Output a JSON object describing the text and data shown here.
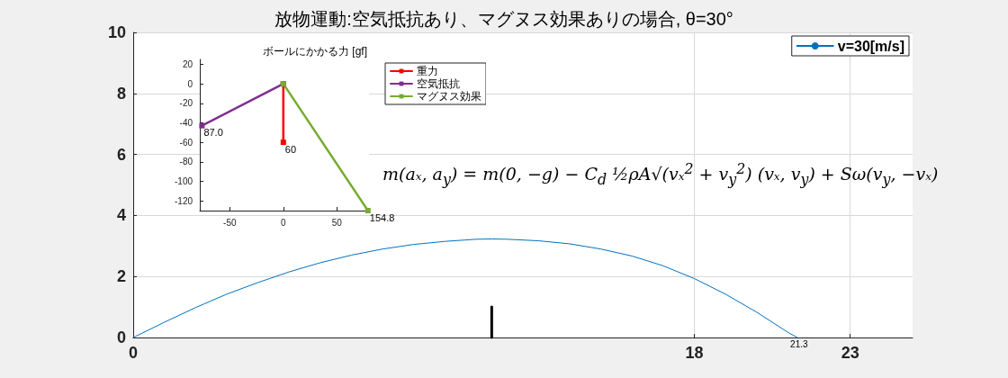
{
  "chart_data": [
    {
      "type": "line",
      "title": "放物運動:空気抵抗あり、マグヌス効果ありの場合, θ=30°",
      "xlim": [
        0,
        25
      ],
      "ylim": [
        0,
        10
      ],
      "xticks": [
        0,
        18,
        23
      ],
      "yticks": [
        0,
        2,
        4,
        6,
        8,
        10
      ],
      "grid": true,
      "legend": "top right",
      "marker": "none",
      "series": [
        {
          "name": "v=30[m/s]",
          "color": "#0072bd",
          "x": [
            0,
            1,
            2,
            3,
            4,
            5,
            6,
            7,
            8,
            9,
            10,
            11,
            11.5,
            12,
            13,
            14,
            15,
            16,
            17,
            18,
            19,
            20,
            21,
            21.3
          ],
          "values": [
            0,
            0.5,
            0.98,
            1.42,
            1.8,
            2.15,
            2.45,
            2.7,
            2.9,
            3.05,
            3.15,
            3.22,
            3.23,
            3.22,
            3.17,
            3.07,
            2.9,
            2.67,
            2.35,
            1.93,
            1.42,
            0.83,
            0.17,
            0
          ]
        },
        {
          "color": "#000000",
          "x": [
            11.5,
            11.5
          ],
          "values": [
            0,
            1
          ]
        }
      ],
      "annotations": [
        {
          "text": "21.3",
          "x": 21.3,
          "y": 0
        },
        "m(aₓ, a$_{y}$) = m(0, −g) − C$_{d}$ ½ρA√(vₓ$^{2}$ + v$_{y}$$^{2}$) (vₓ, v$_{y}$) + Sω(v$_{y}$, −vₓ)"
      ]
    },
    {
      "type": "line",
      "title": "ボールにかかる力 [gf]",
      "xlim": [
        -78,
        80
      ],
      "ylim": [
        -130,
        25
      ],
      "xticks": [
        -50,
        0,
        50
      ],
      "yticks": [
        20,
        0,
        -20,
        -40,
        -60,
        -80,
        -100,
        -120
      ],
      "grid": false,
      "legend": "right",
      "marker": "square",
      "series": [
        {
          "name": "重力",
          "color": "#ff0000",
          "x": [
            0,
            0
          ],
          "values": [
            0,
            -60
          ]
        },
        {
          "name": "空気抵抗",
          "color": "#7e2f8e",
          "x": [
            0,
            -76
          ],
          "values": [
            0,
            -43
          ]
        },
        {
          "name": "マグヌス効果",
          "color": "#77ac30",
          "x": [
            0,
            79
          ],
          "values": [
            0,
            -130
          ]
        }
      ],
      "annotations": [
        {
          "text": "87.0",
          "x": -76,
          "y": -43
        },
        {
          "text": "60",
          "x": 0,
          "y": -60
        },
        {
          "text": "154.8",
          "x": 79,
          "y": -130
        }
      ]
    }
  ]
}
